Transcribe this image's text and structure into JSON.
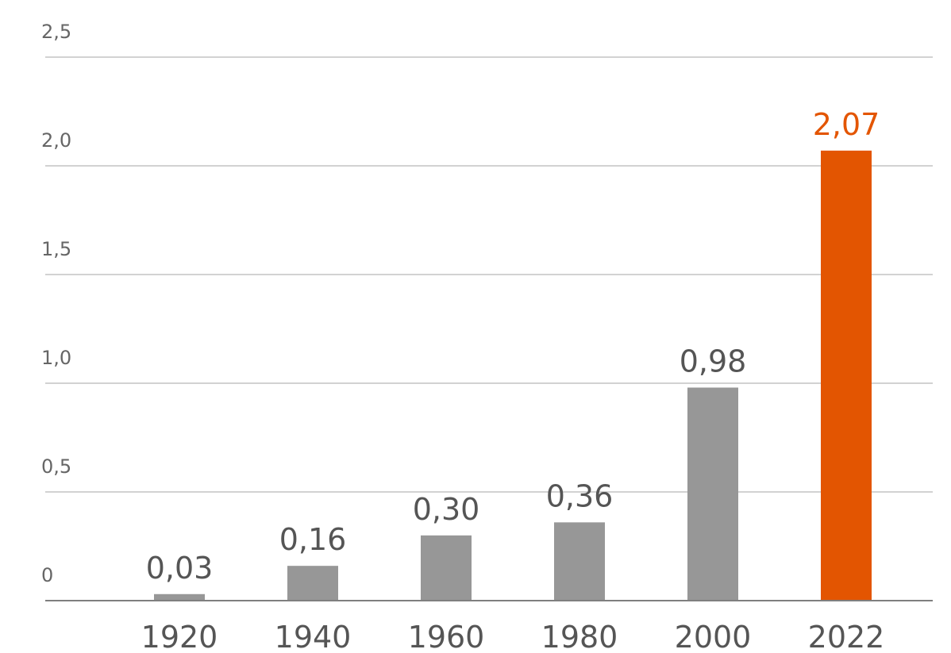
{
  "chart_data": {
    "type": "bar",
    "categories": [
      "1920",
      "1940",
      "1960",
      "1980",
      "2000",
      "2022"
    ],
    "values": [
      0.03,
      0.16,
      0.3,
      0.36,
      0.98,
      2.07
    ],
    "data_labels": [
      "0,03",
      "0,16",
      "0,30",
      "0,36",
      "0,98",
      "2,07"
    ],
    "y_ticks": [
      0,
      0.5,
      1.0,
      1.5,
      2.0,
      2.5
    ],
    "y_tick_labels": [
      "0",
      "0,5",
      "1,0",
      "1,5",
      "2,0",
      "2,5"
    ],
    "ylim": [
      0,
      2.5
    ],
    "grid": true,
    "legend": "none",
    "colors": {
      "default_bar": "#979797",
      "highlight_bar": "#e35501",
      "default_label": "#555555",
      "highlight_label": "#e35501",
      "grid": "#a6a6a6",
      "axis": "#7f7f7f"
    },
    "highlight_index": 5
  }
}
